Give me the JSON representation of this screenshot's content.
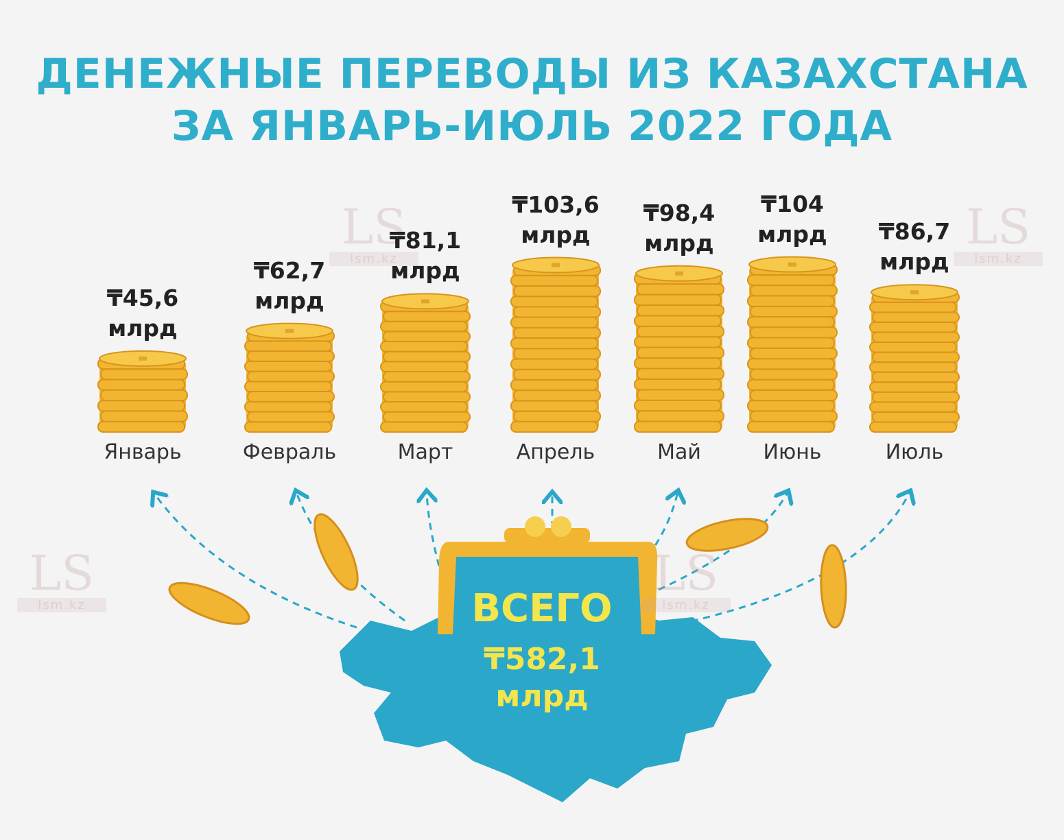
{
  "chart_data": {
    "type": "bar",
    "title": "ДЕНЕЖНЫЕ ПЕРЕВОДЫ ИЗ КАЗАХСТАНА\nЗА ЯНВАРЬ-ИЮЛЬ 2022 ГОДА",
    "categories": [
      "Январь",
      "Февраль",
      "Март",
      "Апрель",
      "Май",
      "Июнь",
      "Июль"
    ],
    "values": [
      45.6,
      62.7,
      81.1,
      103.6,
      98.4,
      104,
      86.7
    ],
    "value_labels": [
      "₸45,6\nмлрд",
      "₸62,7\nмлрд",
      "₸81,1\nмлрд",
      "₸103,6\nмлрд",
      "₸98,4\nмлрд",
      "₸104\nмлрд",
      "₸86,7\nмлрд"
    ],
    "color": "#f2b531",
    "annotations": [
      "ВСЕГО",
      "₸582,1\nмлрд"
    ],
    "watermark": [
      "LS",
      "lsm.kz"
    ]
  }
}
